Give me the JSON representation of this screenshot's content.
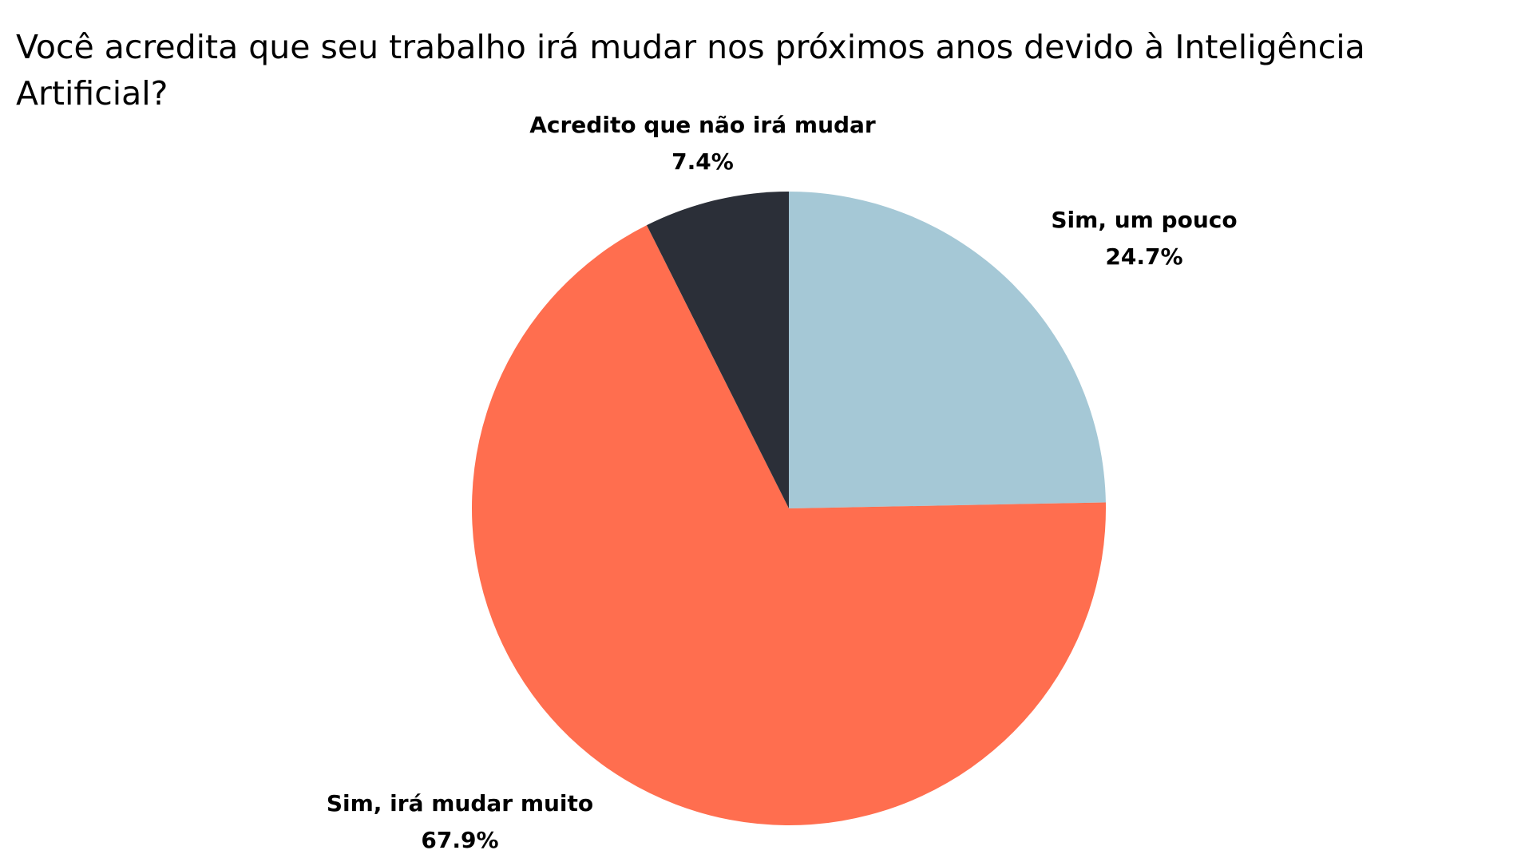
{
  "chart_data": {
    "type": "pie",
    "title": "Você acredita que seu trabalho irá mudar nos próximos anos devido à Inteligência Artificial?",
    "slices": [
      {
        "label": "Sim, um pouco",
        "value": 24.7,
        "value_label": "24.7%",
        "color": "#a5c8d6"
      },
      {
        "label": "Sim, irá mudar muito",
        "value": 67.9,
        "value_label": "67.9%",
        "color": "#ff6e4f"
      },
      {
        "label": "Acredito que não irá mudar",
        "value": 7.4,
        "value_label": "7.4%",
        "color": "#2b2f38"
      }
    ],
    "start_angle_deg": 0,
    "direction": "clockwise",
    "legend": "none"
  }
}
